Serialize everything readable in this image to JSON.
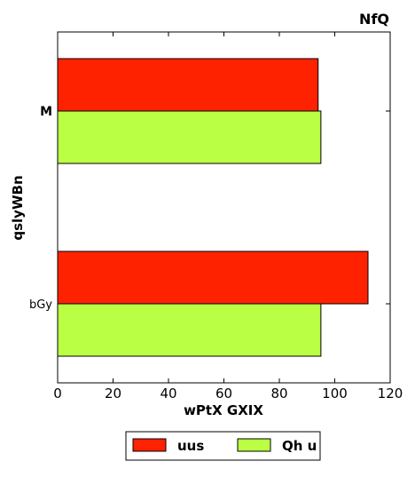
{
  "chart_data": {
    "type": "bar",
    "orientation": "horizontal",
    "title": "NfQ",
    "xlabel": "wPtX GXIX",
    "ylabel": "qslyWBn",
    "categories": [
      "M",
      "bGy"
    ],
    "series": [
      {
        "name": "uus",
        "color": "#ff2200",
        "values": [
          94,
          112
        ]
      },
      {
        "name": "Qh u",
        "color": "#bbff44",
        "values": [
          95,
          95
        ]
      }
    ],
    "xlim": [
      0,
      120
    ],
    "xticks": [
      0,
      20,
      40,
      60,
      80,
      100,
      120
    ],
    "grid": false,
    "legend_position": "bottom-center"
  }
}
